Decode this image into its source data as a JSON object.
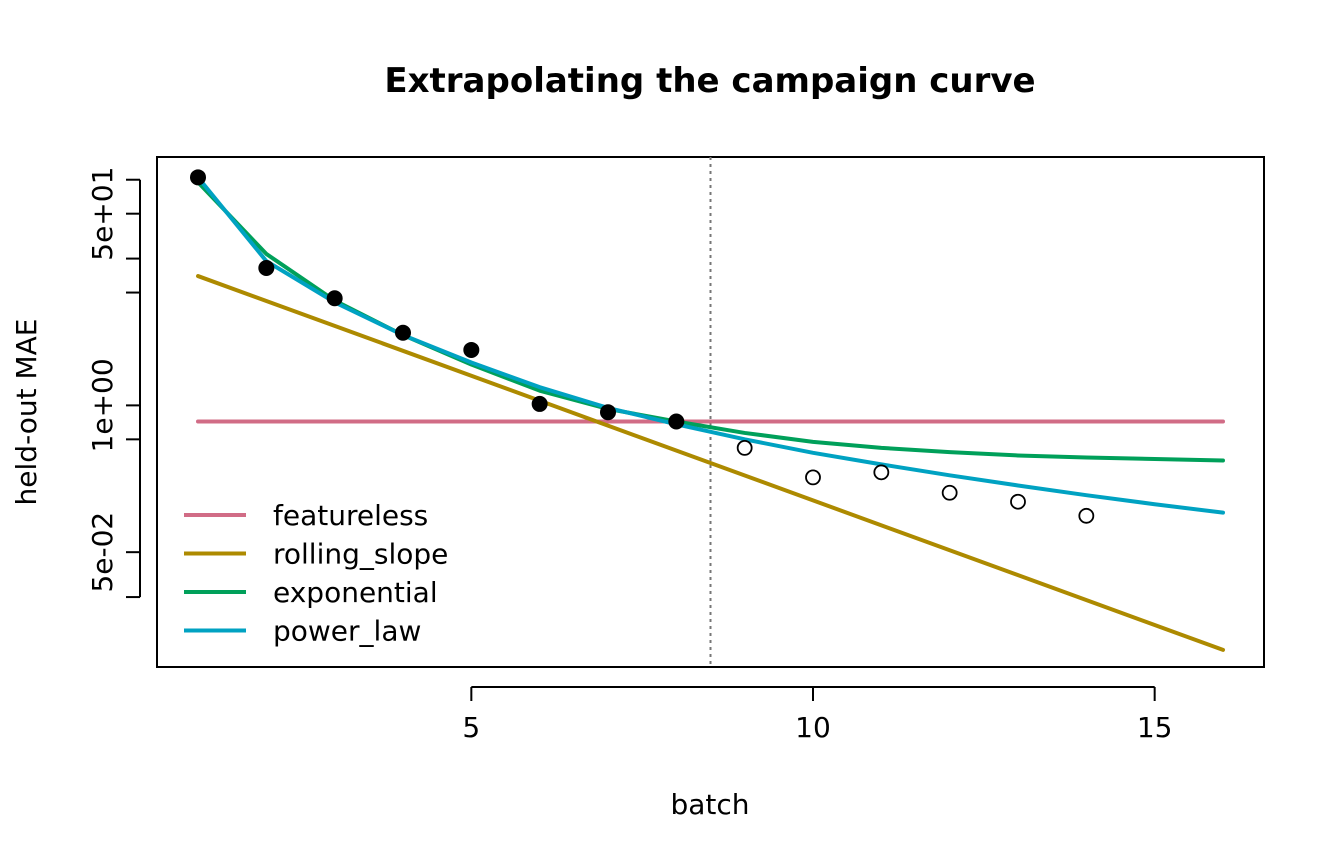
{
  "chart_data": {
    "type": "line",
    "title": "Extrapolating the campaign curve",
    "xlabel": "batch",
    "ylabel": "held-out MAE",
    "xlim": [
      0.4,
      16.6
    ],
    "ylim": [
      0.0048,
      159
    ],
    "y_scale": "log",
    "x_ticks": [
      5,
      10,
      15
    ],
    "x_tick_labels": [
      "5",
      "10",
      "15"
    ],
    "y_ticks": [
      0.02,
      0.05,
      0.5,
      1,
      10,
      20,
      50,
      100
    ],
    "y_tick_labels": [
      {
        "value": 0.05,
        "label": "5e-02"
      },
      {
        "value": 1,
        "label": "1e+00"
      },
      {
        "value": 50,
        "label": "5e+01"
      }
    ],
    "cutoff_x": 8.5,
    "legend_position": "bottom-left",
    "grid": false,
    "observed_points": {
      "x": [
        1,
        2,
        3,
        4,
        5,
        6,
        7,
        8
      ],
      "y": [
        105,
        16.5,
        8.9,
        4.4,
        3.1,
        1.03,
        0.87,
        0.72
      ]
    },
    "heldout_points": {
      "x": [
        9,
        10,
        11,
        12,
        13,
        14
      ],
      "y": [
        0.42,
        0.23,
        0.255,
        0.168,
        0.14,
        0.105
      ]
    },
    "series": [
      {
        "name": "featureless",
        "color": "#D16C86",
        "x": [
          1,
          16
        ],
        "y": [
          0.72,
          0.72
        ]
      },
      {
        "name": "rolling_slope",
        "color": "#AD8A00",
        "x": [
          1,
          16
        ],
        "y": [
          14.0,
          0.0068
        ]
      },
      {
        "name": "exponential",
        "color": "#00A05A",
        "x": [
          1,
          2,
          3,
          4,
          5,
          6,
          7,
          8,
          9,
          10,
          11,
          12,
          13,
          14,
          15,
          16
        ],
        "y": [
          95,
          22,
          8.5,
          4.2,
          2.3,
          1.35,
          0.93,
          0.72,
          0.57,
          0.475,
          0.42,
          0.385,
          0.36,
          0.345,
          0.335,
          0.325
        ]
      },
      {
        "name": "power_law",
        "color": "#00A2C2",
        "x": [
          1,
          2,
          3,
          4,
          5,
          6,
          7,
          8,
          9,
          10,
          11,
          12,
          13,
          14,
          15,
          16
        ],
        "y": [
          105,
          19,
          8.2,
          4.2,
          2.4,
          1.45,
          0.95,
          0.68,
          0.5,
          0.38,
          0.3,
          0.24,
          0.195,
          0.16,
          0.133,
          0.112
        ]
      }
    ]
  }
}
